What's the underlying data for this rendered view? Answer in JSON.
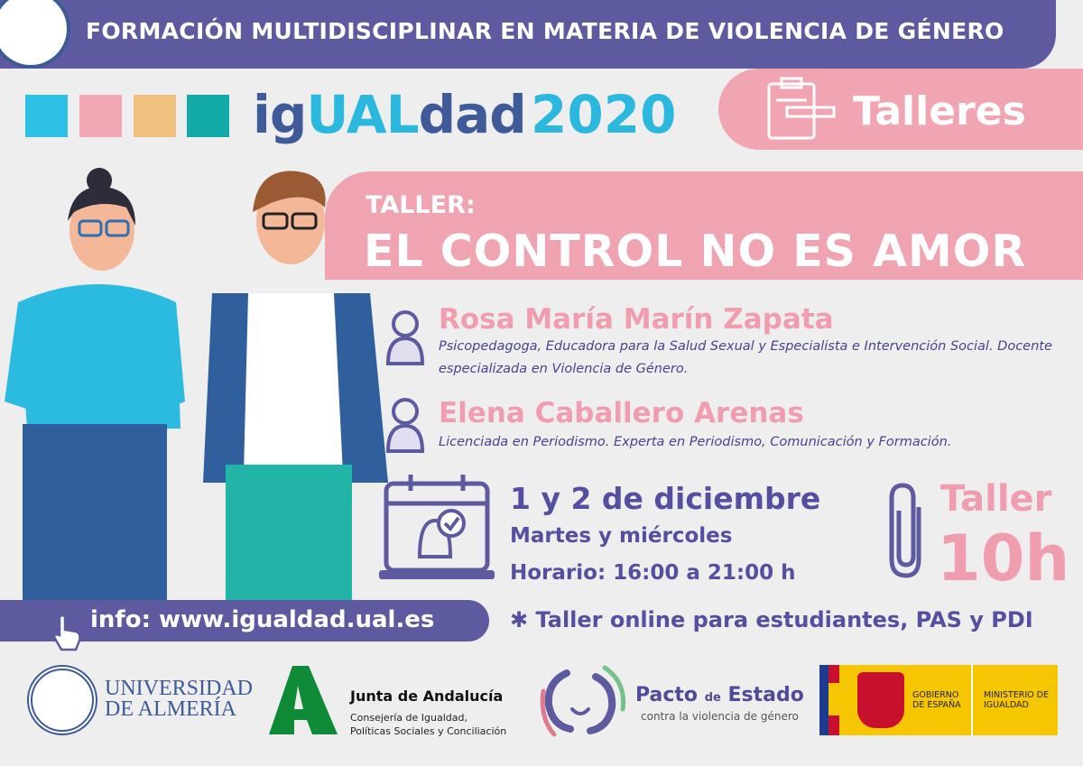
{
  "header": {
    "title": "FORMACIÓN MULTIDISCIPLINAR EN MATERIA DE VIOLENCIA DE GÉNERO"
  },
  "brand": {
    "part1": "ig",
    "part2": "UAL",
    "part3": "dad",
    "year": "2020",
    "squares": [
      "#2bc0e4",
      "#f2a7b4",
      "#f0c07f",
      "#13a9a6"
    ]
  },
  "section": {
    "label": "Talleres",
    "icon": "clipboard-icon"
  },
  "workshop": {
    "prefix": "TALLER:",
    "title": "EL CONTROL NO ES AMOR"
  },
  "speakers": [
    {
      "name": "Rosa María Marín Zapata",
      "bio": "Psicopedagoga, Educadora para la Salud Sexual y Especialista e Intervención Social. Docente especializada en Violencia de Género."
    },
    {
      "name": "Elena Caballero Arenas",
      "bio": "Licenciada en Periodismo. Experta en Periodismo, Comunicación y Formación."
    }
  ],
  "schedule": {
    "date": "1 y 2 de diciembre",
    "days": "Martes y miércoles",
    "hours": "Horario: 16:00 a 21:00 h"
  },
  "duration": {
    "label": "Taller",
    "value": "10h"
  },
  "info": {
    "text": "info: www.igualdad.ual.es"
  },
  "note": "✱ Taller online para estudiantes, PAS y PDI",
  "logos": {
    "ual": {
      "line1": "UNIVERSIDAD",
      "line2": "DE ALMERÍA"
    },
    "junta": {
      "title": "Junta de Andalucía",
      "line1": "Consejería de Igualdad,",
      "line2": "Políticas Sociales y Conciliación"
    },
    "pacto": {
      "title1": "Pacto",
      "de": "de",
      "title2": "Estado",
      "sub": "contra la violencia de género"
    },
    "gobierno": {
      "left": "GOBIERNO DE ESPAÑA",
      "right": "MINISTERIO DE IGUALDAD"
    }
  },
  "colors": {
    "purple": "#5d5a9f",
    "pink": "#f1a4b2",
    "cyan": "#2bb8df",
    "navy": "#46438f"
  }
}
